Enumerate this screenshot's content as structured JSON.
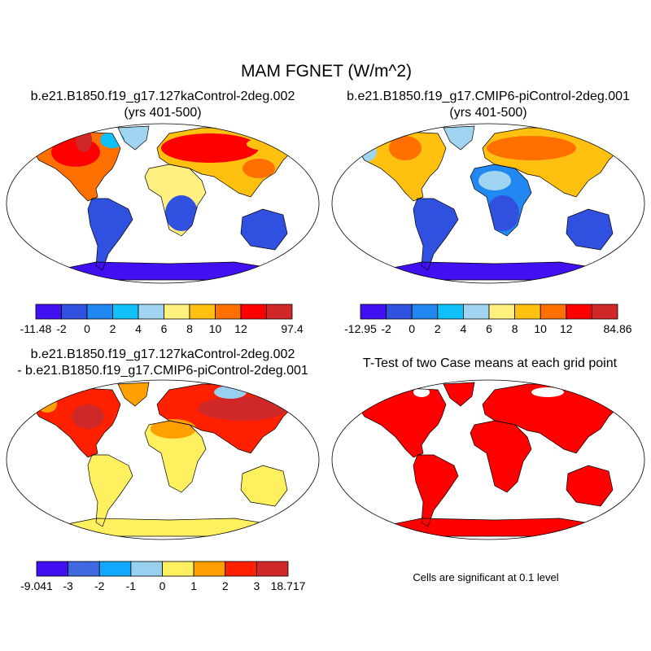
{
  "title": "MAM FGNET (W/m^2)",
  "panels": [
    {
      "title_line1": "b.e21.B1850.f19_g17.127kaControl-2deg.002",
      "title_line2": "(yrs 401-500)",
      "colorbar": {
        "labels": [
          "-11.48",
          "-2",
          "0",
          "2",
          "4",
          "6",
          "8",
          "10",
          "12",
          "",
          "97.4"
        ],
        "colors": [
          "#4010f0",
          "#3050e0",
          "#2088f0",
          "#10c0f8",
          "#a0d4f0",
          "#fff080",
          "#ffc010",
          "#ff7000",
          "#ff0000",
          "#d02828"
        ]
      }
    },
    {
      "title_line1": "b.e21.B1850.f19_g17.CMIP6-piControl-2deg.001",
      "title_line2": "(yrs 401-500)",
      "colorbar": {
        "labels": [
          "-12.95",
          "-2",
          "0",
          "2",
          "4",
          "6",
          "8",
          "10",
          "12",
          "",
          "84.86"
        ],
        "colors": [
          "#4010f0",
          "#3050e0",
          "#2088f0",
          "#10c0f8",
          "#a0d4f0",
          "#fff080",
          "#ffc010",
          "#ff7000",
          "#ff0000",
          "#d02828"
        ]
      }
    },
    {
      "title_line1": "b.e21.B1850.f19_g17.127kaControl-2deg.002",
      "title_line2": "- b.e21.B1850.f19_g17.CMIP6-piControl-2deg.001",
      "colorbar": {
        "labels": [
          "-9.041",
          "-3",
          "-2",
          "-1",
          "0",
          "1",
          "2",
          "3",
          "18.717"
        ],
        "colors": [
          "#4010f0",
          "#4068e0",
          "#10a8ff",
          "#98d0f0",
          "#fff060",
          "#ffa000",
          "#ff2000",
          "#d02828"
        ]
      }
    },
    {
      "title_line1": "T-Test of two Case means at each grid point",
      "note": "Cells are significant at 0.1 level",
      "significant_color": "#ff0000"
    }
  ]
}
